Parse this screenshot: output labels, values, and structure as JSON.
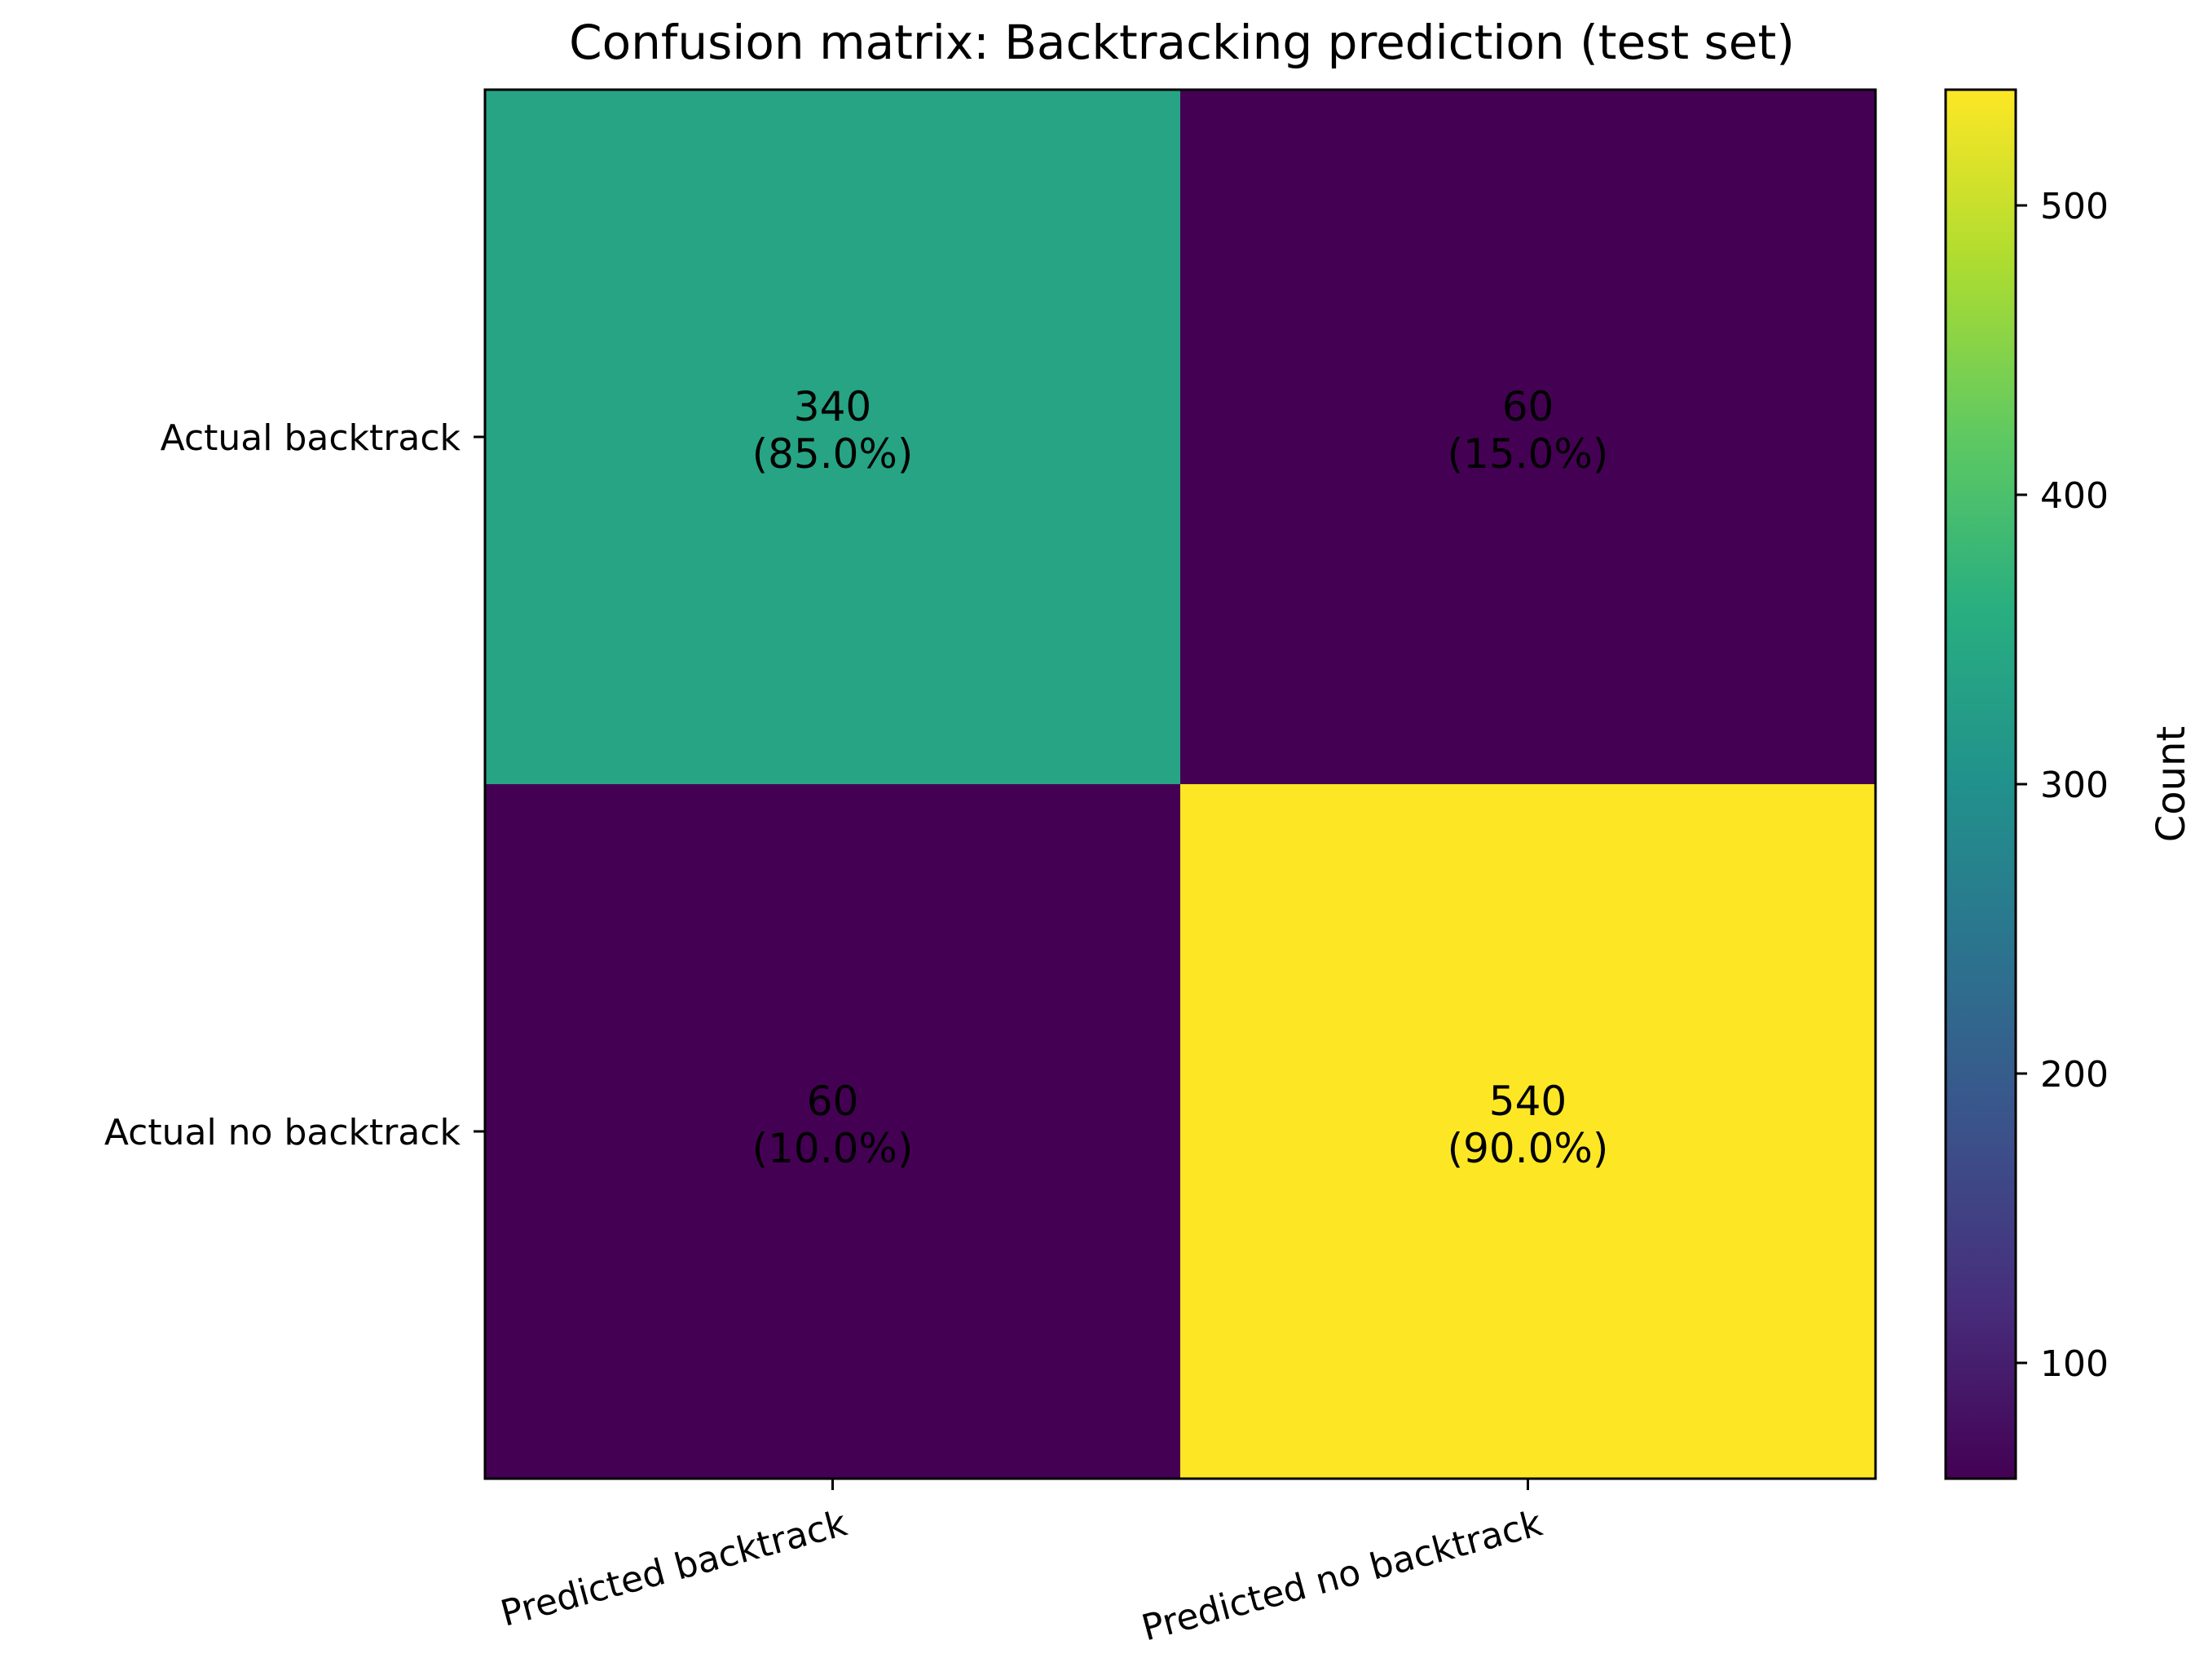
{
  "chart_data": {
    "type": "heatmap",
    "title": "Confusion matrix: Backtracking prediction (test set)",
    "row_labels": [
      "Actual backtrack",
      "Actual no backtrack"
    ],
    "col_labels": [
      "Predicted backtrack",
      "Predicted no backtrack"
    ],
    "values": [
      [
        340,
        60
      ],
      [
        60,
        540
      ]
    ],
    "cell_text": [
      [
        {
          "count": "340",
          "percent": "(85.0%)"
        },
        {
          "count": "60",
          "percent": "(15.0%)"
        }
      ],
      [
        {
          "count": "60",
          "percent": "(10.0%)"
        },
        {
          "count": "540",
          "percent": "(90.0%)"
        }
      ]
    ],
    "colorbar": {
      "label": "Count",
      "range": [
        60,
        540
      ],
      "ticks": [
        100,
        200,
        300,
        400,
        500
      ],
      "tick_labels": [
        "100",
        "200",
        "300",
        "400",
        "500"
      ],
      "colormap": "viridis"
    },
    "grid": false
  }
}
